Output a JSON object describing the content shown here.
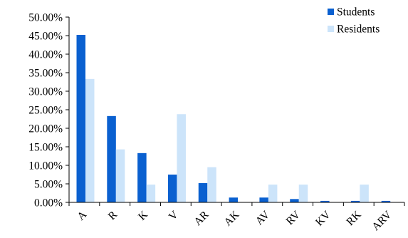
{
  "chart_data": {
    "type": "bar",
    "categories": [
      "A",
      "R",
      "K",
      "V",
      "AR",
      "AK",
      "AV",
      "RV",
      "KV",
      "RK",
      "ARV"
    ],
    "series": [
      {
        "name": "Students",
        "color": "#0A60D0",
        "values": [
          45.2,
          23.3,
          13.3,
          7.5,
          5.2,
          1.3,
          1.3,
          0.9,
          0.4,
          0.4,
          0.4
        ]
      },
      {
        "name": "Residents",
        "color": "#CCE4FA",
        "values": [
          33.3,
          14.3,
          4.8,
          23.8,
          9.5,
          0.0,
          4.8,
          4.8,
          0.0,
          4.8,
          0.0
        ]
      }
    ],
    "y_unit": "%",
    "ylim": [
      0,
      50
    ],
    "y_ticks": [
      "0.00%",
      "5.00%",
      "10.00%",
      "15.00%",
      "20.00%",
      "25.00%",
      "30.00%",
      "35.00%",
      "40.00%",
      "45.00%",
      "50.00%"
    ],
    "grid": false,
    "legend": "top-right",
    "title": "",
    "xlabel": "",
    "ylabel": ""
  }
}
